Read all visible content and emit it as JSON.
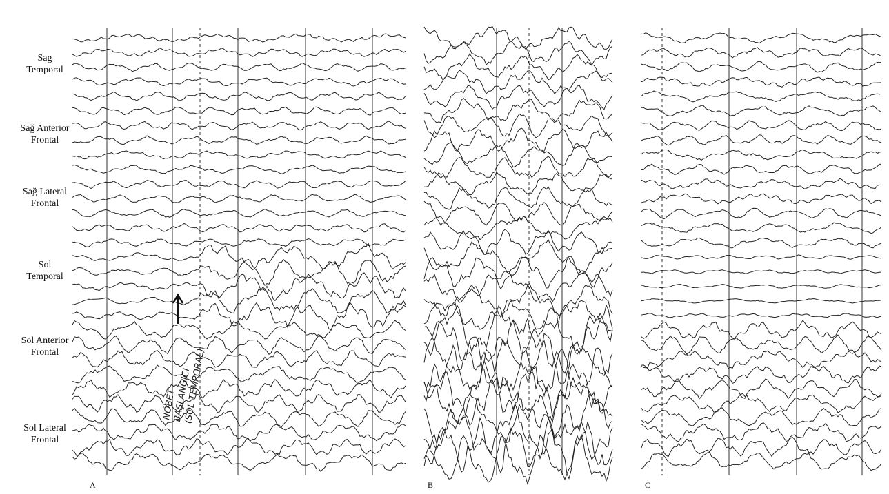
{
  "channel_groups": [
    "Sag\nTemporal",
    "Sağ Anterior\nFrontal",
    "Sağ Lateral\nFrontal",
    "Sol\nTemporal",
    "Sol Anterior\nFrontal",
    "Sol Lateral\nFrontal"
  ],
  "panels": [
    {
      "label": "A"
    },
    {
      "label": "B"
    },
    {
      "label": "C"
    }
  ],
  "annotation": [
    "NÖBET",
    "BAŞLANGICI",
    "(SOL TEMPORAL)"
  ]
}
